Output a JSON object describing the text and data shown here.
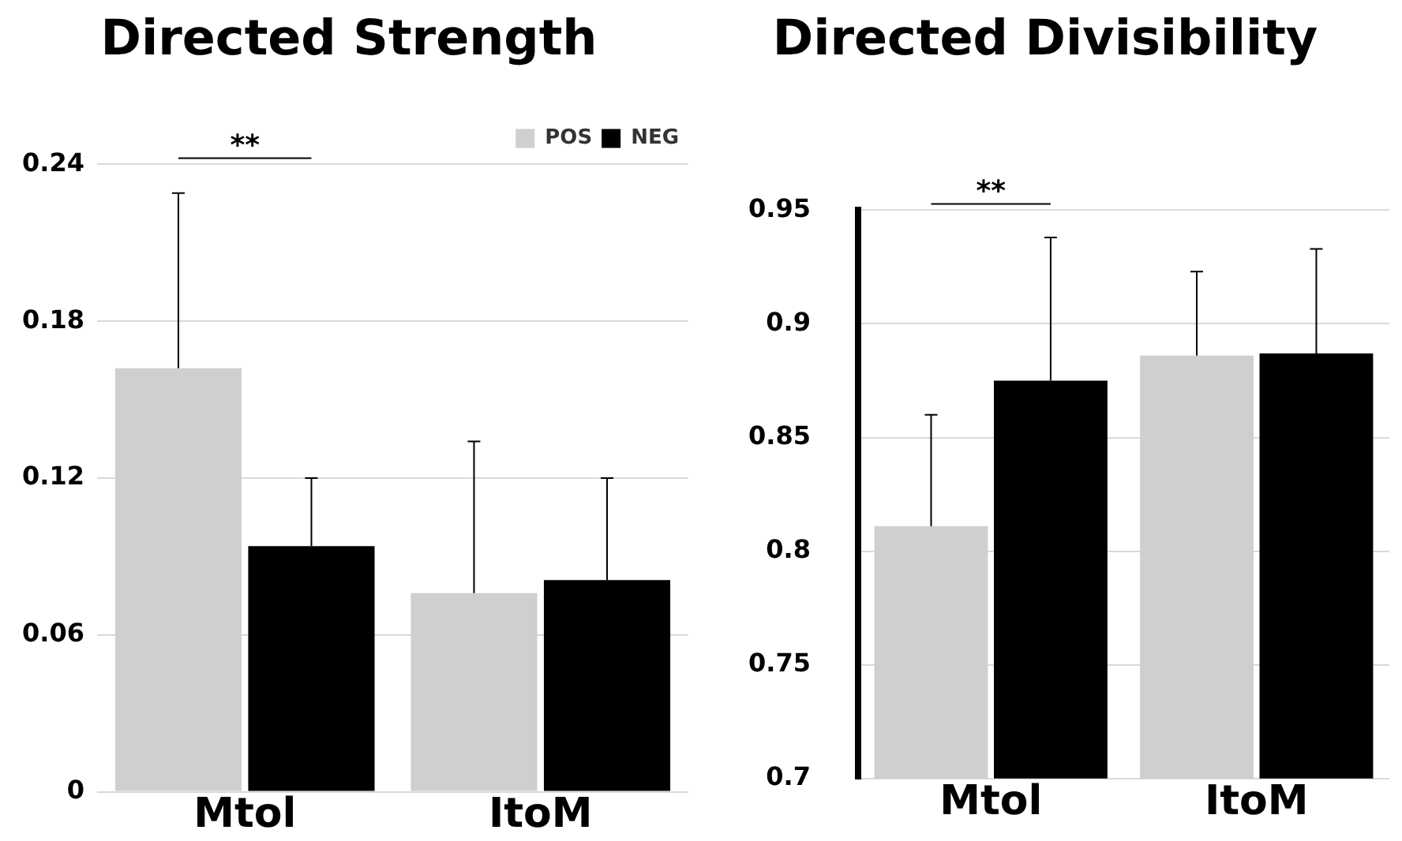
{
  "chart_data": [
    {
      "type": "bar",
      "title": "Directed Strength",
      "categories": [
        "Mtol",
        "ItoM"
      ],
      "series": [
        {
          "name": "POS",
          "color": "#d0cfd0",
          "values": [
            0.162,
            0.076
          ],
          "errors": [
            [
              0.162,
              0.229
            ],
            [
              0.076,
              0.134
            ]
          ]
        },
        {
          "name": "NEG",
          "color": "#000000",
          "values": [
            0.094,
            0.081
          ],
          "errors": [
            [
              0.094,
              0.12
            ],
            [
              0.081,
              0.12
            ]
          ]
        }
      ],
      "ylim": [
        0,
        0.24
      ],
      "yticks": [
        0,
        0.06,
        0.12,
        0.18,
        0.24
      ],
      "grid": "y",
      "legend": "top right",
      "annotations": [
        "**"
      ]
    },
    {
      "type": "bar",
      "title": "Directed Divisibility",
      "categories": [
        "Mtol",
        "ItoM"
      ],
      "series": [
        {
          "color": "#d0cfd0",
          "values": [
            0.811,
            0.886
          ],
          "errors": [
            [
              0.811,
              0.86
            ],
            [
              0.886,
              0.923
            ]
          ]
        },
        {
          "color": "#000000",
          "values": [
            0.875,
            0.887
          ],
          "errors": [
            [
              0.875,
              0.938
            ],
            [
              0.887,
              0.933
            ]
          ]
        }
      ],
      "ylim": [
        0.7,
        0.95
      ],
      "yticks": [
        0.7,
        0.75,
        0.8,
        0.85,
        0.9,
        0.95
      ],
      "grid": "y",
      "annotations": [
        "**"
      ]
    }
  ]
}
